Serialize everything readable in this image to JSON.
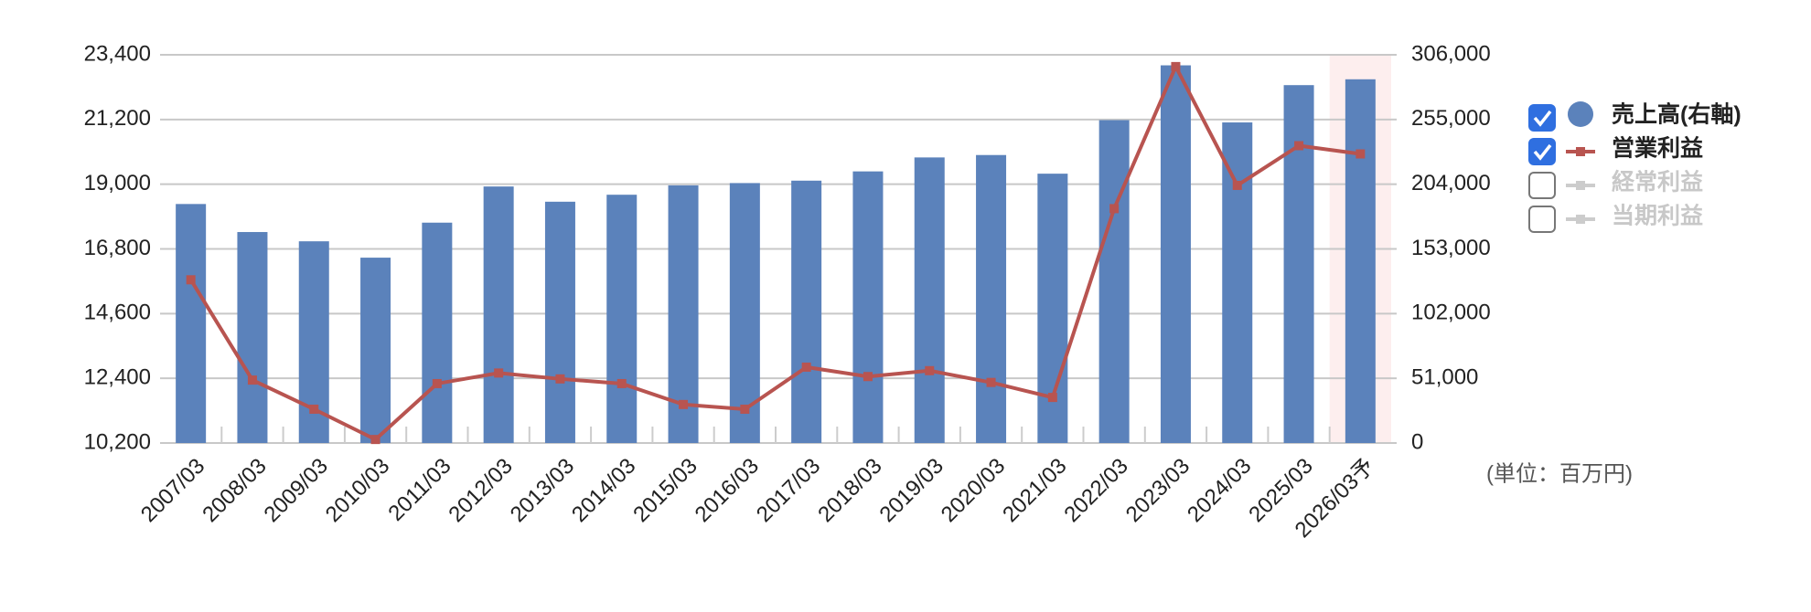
{
  "chart_data": {
    "type": "bar_line",
    "categories": [
      "2007/03",
      "2008/03",
      "2009/03",
      "2010/03",
      "2011/03",
      "2012/03",
      "2013/03",
      "2014/03",
      "2015/03",
      "2016/03",
      "2017/03",
      "2018/03",
      "2019/03",
      "2020/03",
      "2021/03",
      "2022/03",
      "2023/03",
      "2024/03",
      "2025/03",
      "2026/03予"
    ],
    "series": [
      {
        "name": "売上高(右軸)",
        "type": "bar",
        "axis": "y2",
        "color": "#5b82bb",
        "visible": true,
        "values": [
          188400,
          166300,
          159000,
          146100,
          173700,
          202200,
          190200,
          195700,
          203100,
          204900,
          206800,
          214100,
          225100,
          227000,
          212300,
          254500,
          297700,
          252700,
          282100,
          286700
        ]
      },
      {
        "name": "営業利益",
        "type": "line",
        "axis": "y",
        "color": "#b85450",
        "visible": true,
        "values": [
          15750,
          12340,
          11350,
          10320,
          12220,
          12580,
          12380,
          12220,
          11510,
          11350,
          12780,
          12460,
          12660,
          12260,
          11750,
          18170,
          23000,
          18960,
          20310,
          20030
        ]
      },
      {
        "name": "経常利益",
        "type": "line",
        "axis": "y",
        "color": "#cccccc",
        "visible": false
      },
      {
        "name": "当期利益",
        "type": "line",
        "axis": "y",
        "color": "#cccccc",
        "visible": false
      }
    ],
    "ylim": [
      10200,
      23400
    ],
    "yticks": [
      {
        "value": 10200,
        "label": "10,200"
      },
      {
        "value": 12400,
        "label": "12,400"
      },
      {
        "value": 14600,
        "label": "14,600"
      },
      {
        "value": 16800,
        "label": "16,800"
      },
      {
        "value": 19000,
        "label": "19,000"
      },
      {
        "value": 21200,
        "label": "21,200"
      },
      {
        "value": 23400,
        "label": "23,400"
      }
    ],
    "y2lim": [
      0,
      306000
    ],
    "y2ticks": [
      0,
      {
        "value": 51000,
        "label": "51,000"
      },
      {
        "value": 102000,
        "label": "102,000"
      },
      {
        "value": 153000,
        "label": "153,000"
      },
      {
        "value": 204000,
        "label": "204,000"
      },
      {
        "value": 255000,
        "label": "255,000"
      },
      {
        "value": 306000,
        "label": "306,000"
      }
    ],
    "grid": true,
    "highlight_category": "2026/03予",
    "unit_note": "(単位：百万円)"
  }
}
